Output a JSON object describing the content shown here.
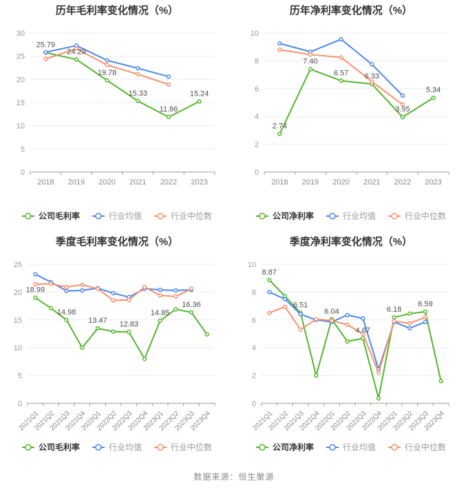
{
  "page": {
    "footer": "数据来源：恒生聚源"
  },
  "colors": {
    "company": "#53B62B",
    "industry_avg": "#4C87F0",
    "industry_median": "#F7916C",
    "grid_line": "#E8ECF4",
    "axis_line": "#999999",
    "tick_label": "#999999",
    "x_label": "#888888",
    "value_label": "#4D4D4D",
    "title": "#333333",
    "legend_text_active": "#333333",
    "legend_text_muted": "#999999"
  },
  "chart_data": [
    {
      "id": "annual-gross-margin",
      "type": "line",
      "title": "历年毛利率变化情况（%）",
      "categories": [
        "2018",
        "2019",
        "2020",
        "2021",
        "2022",
        "2023"
      ],
      "x_rotate": false,
      "y_min": 0,
      "y_max": 30,
      "y_step": 5,
      "grid": true,
      "legend_position": "bottom",
      "legend": [
        "公司毛利率",
        "行业均值",
        "行业中位数"
      ],
      "series": [
        {
          "name": "公司毛利率",
          "color_key": "company",
          "values": [
            25.79,
            24.29,
            19.78,
            15.33,
            11.86,
            15.24
          ],
          "point_labels": [
            "25.79",
            "24.29",
            "19.78",
            "15.33",
            "11.86",
            "15.24"
          ]
        },
        {
          "name": "行业均值",
          "color_key": "industry_avg",
          "values": [
            25.85,
            27.3,
            24.1,
            22.4,
            20.6,
            null
          ],
          "point_labels": []
        },
        {
          "name": "行业中位数",
          "color_key": "industry_median",
          "values": [
            24.4,
            26.6,
            23.1,
            21.1,
            18.9,
            null
          ],
          "point_labels": []
        }
      ]
    },
    {
      "id": "annual-net-margin",
      "type": "line",
      "title": "历年净利率变化情况（%）",
      "categories": [
        "2018",
        "2019",
        "2020",
        "2021",
        "2022",
        "2023"
      ],
      "x_rotate": false,
      "y_min": 0,
      "y_max": 10,
      "y_step": 2,
      "grid": true,
      "legend_position": "bottom",
      "legend": [
        "公司净利率",
        "行业均值",
        "行业中位数"
      ],
      "series": [
        {
          "name": "公司净利率",
          "color_key": "company",
          "values": [
            2.74,
            7.4,
            6.57,
            6.33,
            3.95,
            5.34
          ],
          "point_labels": [
            "2.74",
            "7.40",
            "6.57",
            "6.33",
            "3.95",
            "5.34"
          ]
        },
        {
          "name": "行业均值",
          "color_key": "industry_avg",
          "values": [
            9.25,
            8.65,
            9.55,
            7.75,
            5.5,
            null
          ],
          "point_labels": []
        },
        {
          "name": "行业中位数",
          "color_key": "industry_median",
          "values": [
            8.8,
            8.45,
            8.25,
            6.5,
            4.85,
            null
          ],
          "point_labels": []
        }
      ]
    },
    {
      "id": "quarterly-gross-margin",
      "type": "line",
      "title": "季度毛利率变化情况（%）",
      "categories": [
        "2021Q1",
        "2021Q2",
        "2021Q3",
        "2021Q4",
        "2022Q1",
        "2022Q2",
        "2022Q3",
        "2022Q4",
        "2023Q1",
        "2023Q2",
        "2023Q3",
        "2023Q4"
      ],
      "x_rotate": true,
      "y_min": 0,
      "y_max": 25,
      "y_step": 5,
      "grid": true,
      "legend_position": "bottom",
      "legend": [
        "公司毛利率",
        "行业均值",
        "行业中位数"
      ],
      "series": [
        {
          "name": "公司毛利率",
          "color_key": "company",
          "values": [
            18.99,
            17.1,
            14.98,
            10.0,
            13.47,
            12.9,
            12.83,
            8.0,
            14.85,
            16.9,
            16.36,
            12.4
          ],
          "point_labels": [
            "18.99",
            null,
            "14.98",
            null,
            "13.47",
            null,
            "12.83",
            null,
            "14.85",
            null,
            "16.36",
            null
          ]
        },
        {
          "name": "行业均值",
          "color_key": "industry_avg",
          "values": [
            23.2,
            21.8,
            20.2,
            20.3,
            20.7,
            19.8,
            19.1,
            20.6,
            20.4,
            20.3,
            20.4,
            null
          ],
          "point_labels": []
        },
        {
          "name": "行业中位数",
          "color_key": "industry_median",
          "values": [
            21.4,
            21.5,
            20.9,
            21.3,
            20.6,
            18.5,
            18.6,
            20.9,
            19.4,
            19.2,
            20.6,
            null
          ],
          "point_labels": []
        }
      ]
    },
    {
      "id": "quarterly-net-margin",
      "type": "line",
      "title": "季度净利率变化情况（%）",
      "categories": [
        "2021Q1",
        "2021Q2",
        "2021Q3",
        "2021Q4",
        "2022Q1",
        "2022Q2",
        "2022Q3",
        "2022Q4",
        "2023Q1",
        "2023Q2",
        "2023Q3",
        "2023Q4"
      ],
      "x_rotate": true,
      "y_min": 0,
      "y_max": 10,
      "y_step": 2,
      "grid": true,
      "legend_position": "bottom",
      "legend": [
        "公司净利率",
        "行业均值",
        "行业中位数"
      ],
      "series": [
        {
          "name": "公司净利率",
          "color_key": "company",
          "values": [
            8.87,
            7.7,
            6.51,
            2.0,
            6.04,
            4.45,
            4.67,
            0.35,
            6.18,
            6.45,
            6.59,
            1.6
          ],
          "point_labels": [
            "8.87",
            null,
            "6.51",
            null,
            "6.04",
            null,
            "4.67",
            null,
            "6.18",
            null,
            "6.59",
            null
          ]
        },
        {
          "name": "行业均值",
          "color_key": "industry_avg",
          "values": [
            8.0,
            7.5,
            6.4,
            6.0,
            5.85,
            6.35,
            6.1,
            2.45,
            5.85,
            5.4,
            5.85,
            null
          ],
          "point_labels": []
        },
        {
          "name": "行业中位数",
          "color_key": "industry_median",
          "values": [
            6.5,
            6.95,
            5.3,
            6.05,
            5.95,
            5.65,
            5.0,
            2.2,
            5.9,
            5.75,
            6.2,
            null
          ],
          "point_labels": []
        }
      ]
    }
  ]
}
